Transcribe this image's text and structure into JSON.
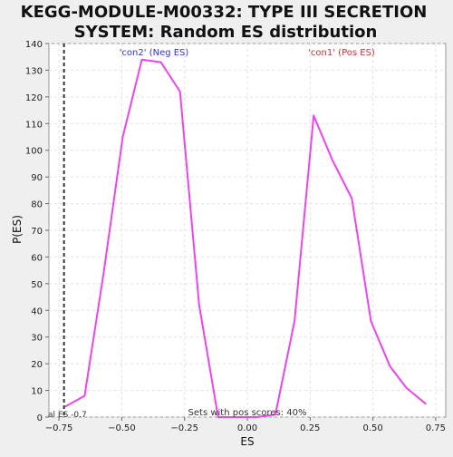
{
  "chart_data": {
    "type": "line",
    "title_lines": [
      "KEGG-MODULE-M00332: TYPE III SECRETION",
      "SYSTEM: Random ES distribution"
    ],
    "xlabel": "ES",
    "ylabel": "P(ES)",
    "xlim": [
      -0.79,
      0.79
    ],
    "ylim": [
      0,
      140
    ],
    "x_ticks": [
      -0.75,
      -0.5,
      -0.25,
      0.0,
      0.25,
      0.5,
      0.75
    ],
    "x_tick_labels": [
      "−0.75",
      "−0.50",
      "−0.25",
      "0.00",
      "0.25",
      "0.50",
      "0.75"
    ],
    "y_ticks": [
      0,
      10,
      20,
      30,
      40,
      50,
      60,
      70,
      80,
      90,
      100,
      110,
      120,
      130,
      140
    ],
    "grid": true,
    "series": [
      {
        "name": "Random ES distribution",
        "color": "#ee44ee",
        "x": [
          -0.724,
          -0.648,
          -0.572,
          -0.496,
          -0.42,
          -0.344,
          -0.268,
          -0.192,
          -0.116,
          -0.04,
          0.036,
          0.112,
          0.188,
          0.264,
          0.34,
          0.416,
          0.492,
          0.568,
          0.633,
          0.71
        ],
        "y": [
          4,
          8,
          54,
          105,
          134,
          133,
          122,
          42,
          0,
          0,
          0,
          1,
          36,
          113,
          96,
          82,
          36,
          19,
          11,
          5
        ]
      }
    ],
    "vline": {
      "x": -0.73,
      "color": "#333333",
      "style": "dashed"
    },
    "annotations": {
      "neg_label": {
        "text": "'con2' (Neg ES)",
        "color": "#3333cc"
      },
      "pos_label": {
        "text": "'con1' (Pos ES)",
        "color": "#cc3333"
      },
      "actual_es_label": "al ES -0.7",
      "footer": "Sets with pos scores: 40%"
    }
  }
}
